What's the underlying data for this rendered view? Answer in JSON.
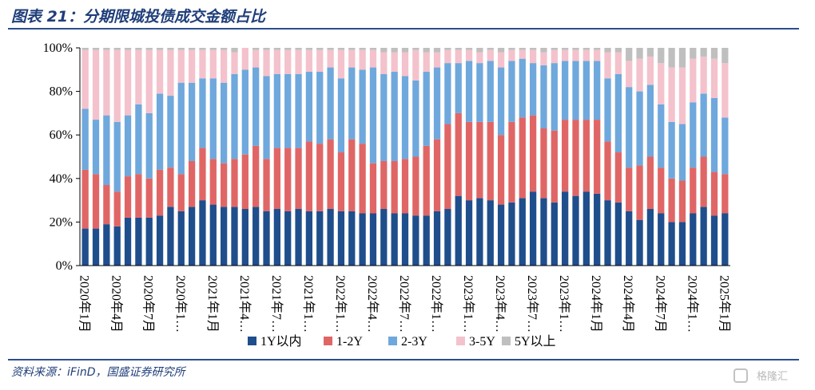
{
  "header": {
    "title": "图表 21：分期限城投债成交金额占比",
    "source": "资料来源：iFinD，国盛证券研究所",
    "watermark": "格隆汇"
  },
  "colors": {
    "title": "#1f3e7a",
    "rule": "#2b4f8d",
    "s1": "#1f4e8c",
    "s2": "#e06666",
    "s3": "#6fa8dc",
    "s4": "#f4c2cc",
    "s5": "#bfbfbf"
  },
  "chart_data": {
    "type": "bar",
    "stacked": true,
    "title": "",
    "xlabel": "",
    "ylabel": "",
    "ylim": [
      0,
      100
    ],
    "yticks": [
      "0%",
      "20%",
      "40%",
      "60%",
      "80%",
      "100%"
    ],
    "categories": [
      "2020年1月",
      "2020年2月",
      "2020年3月",
      "2020年4月",
      "2020年5月",
      "2020年6月",
      "2020年7月",
      "2020年8月",
      "2020年9月",
      "2020年10月",
      "2020年11月",
      "2020年12月",
      "2021年1月",
      "2021年2月",
      "2021年3月",
      "2021年4月",
      "2021年5月",
      "2021年6月",
      "2021年7月",
      "2021年8月",
      "2021年9月",
      "2021年10月",
      "2021年11月",
      "2021年12月",
      "2022年1月",
      "2022年2月",
      "2022年3月",
      "2022年4月",
      "2022年5月",
      "2022年6月",
      "2022年7月",
      "2022年8月",
      "2022年9月",
      "2022年10月",
      "2022年11月",
      "2022年12月",
      "2023年1月",
      "2023年2月",
      "2023年3月",
      "2023年4月",
      "2023年5月",
      "2023年6月",
      "2023年7月",
      "2023年8月",
      "2023年9月",
      "2023年10月",
      "2023年11月",
      "2023年12月",
      "2024年1月",
      "2024年2月",
      "2024年3月",
      "2024年4月",
      "2024年5月",
      "2024年6月",
      "2024年7月",
      "2024年8月",
      "2024年9月",
      "2024年10月",
      "2024年11月",
      "2024年12月",
      "2025年1月"
    ],
    "xtick_labels": [
      "2020年1月",
      "2020年4月",
      "2020年7月",
      "2020年1…",
      "2021年1月",
      "2021年4…",
      "2021年7…",
      "2021年1…",
      "2022年1…",
      "2022年4…",
      "2022年7…",
      "2022年1…",
      "2023年1…",
      "2023年4…",
      "2023年7…",
      "2023年1…",
      "2024年1月",
      "2024年4月",
      "2024年7月",
      "2024年1…",
      "2025年1月"
    ],
    "series": [
      {
        "name": "1Y以内",
        "values": [
          17,
          17,
          19,
          18,
          22,
          22,
          22,
          23,
          27,
          25,
          27,
          30,
          28,
          27,
          27,
          26,
          27,
          25,
          26,
          25,
          26,
          25,
          25,
          26,
          25,
          25,
          24,
          24,
          26,
          24,
          24,
          23,
          23,
          25,
          26,
          32,
          30,
          31,
          30,
          28,
          29,
          31,
          34,
          31,
          29,
          34,
          32,
          34,
          33,
          30,
          29,
          25,
          21,
          26,
          24,
          20,
          20,
          24,
          27,
          23,
          24
        ]
      },
      {
        "name": "1-2Y",
        "values": [
          27,
          25,
          18,
          16,
          19,
          20,
          18,
          21,
          18,
          17,
          21,
          24,
          21,
          20,
          22,
          25,
          28,
          24,
          28,
          29,
          28,
          32,
          31,
          32,
          27,
          33,
          32,
          23,
          22,
          24,
          25,
          27,
          32,
          33,
          39,
          38,
          36,
          35,
          36,
          32,
          37,
          37,
          35,
          32,
          33,
          33,
          35,
          33,
          34,
          27,
          23,
          20,
          25,
          24,
          21,
          20,
          19,
          21,
          23,
          20,
          18
        ]
      },
      {
        "name": "2-3Y",
        "values": [
          28,
          25,
          32,
          32,
          28,
          32,
          30,
          35,
          33,
          42,
          36,
          32,
          37,
          37,
          39,
          39,
          36,
          38,
          34,
          34,
          34,
          32,
          33,
          33,
          34,
          33,
          34,
          44,
          40,
          41,
          38,
          35,
          34,
          33,
          28,
          23,
          28,
          27,
          28,
          31,
          28,
          27,
          24,
          29,
          31,
          27,
          27,
          27,
          27,
          29,
          36,
          37,
          34,
          33,
          29,
          26,
          26,
          30,
          29,
          34,
          26
        ]
      },
      {
        "name": "3-5Y",
        "values": [
          27,
          32,
          30,
          33,
          30,
          25,
          29,
          20,
          21,
          15,
          15,
          13,
          13,
          15,
          10,
          10,
          8,
          12,
          11,
          11,
          11,
          10,
          10,
          8,
          13,
          8,
          9,
          8,
          10,
          9,
          11,
          14,
          9,
          7,
          6,
          6,
          5,
          5,
          5,
          7,
          5,
          4,
          6,
          6,
          6,
          5,
          5,
          5,
          5,
          12,
          10,
          12,
          15,
          13,
          19,
          25,
          26,
          20,
          17,
          18,
          25
        ]
      },
      {
        "name": "5Y以上",
        "values": [
          1,
          1,
          1,
          1,
          1,
          1,
          1,
          1,
          1,
          1,
          1,
          1,
          1,
          1,
          2,
          0,
          1,
          1,
          1,
          1,
          1,
          1,
          1,
          1,
          1,
          1,
          1,
          1,
          2,
          2,
          2,
          1,
          2,
          2,
          1,
          1,
          1,
          2,
          1,
          2,
          1,
          1,
          1,
          2,
          1,
          1,
          1,
          1,
          1,
          2,
          2,
          6,
          5,
          4,
          7,
          9,
          9,
          5,
          4,
          5,
          7
        ]
      }
    ],
    "legend": {
      "placement": "bottom"
    }
  }
}
